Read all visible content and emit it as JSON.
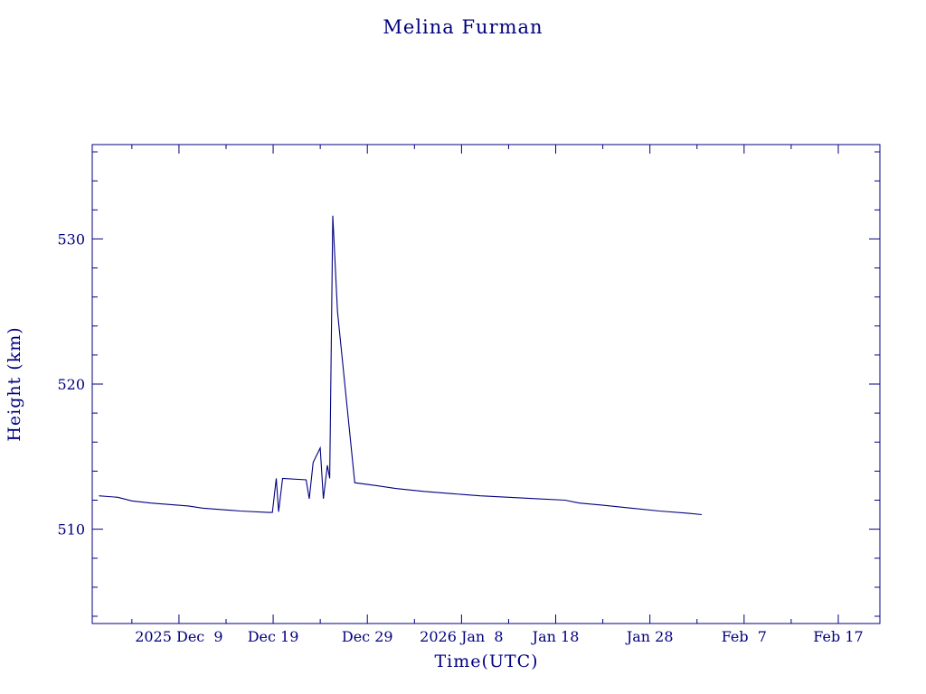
{
  "chart_data": {
    "type": "line",
    "title": "Melina Furman",
    "xlabel": "Time(UTC)",
    "ylabel": "Height (km)",
    "x_tick_labels": [
      "2025 Dec  9",
      "Dec 19",
      "Dec 29",
      "2026 Jan  8",
      "Jan 18",
      "Jan 28",
      "Feb  7",
      "Feb 17"
    ],
    "x_tick_dates": [
      "2025-12-09",
      "2025-12-19",
      "2025-12-29",
      "2026-01-08",
      "2026-01-18",
      "2026-01-28",
      "2026-02-07",
      "2026-02-17"
    ],
    "y_tick_labels": [
      "510",
      "520",
      "530"
    ],
    "y_tick_values": [
      510,
      520,
      530
    ],
    "xlim": [
      "2025-11-29T19:00",
      "2026-02-21T10:00"
    ],
    "ylim": [
      503.5,
      536.5
    ],
    "grid": false,
    "color": "#000080",
    "series": [
      {
        "x": [
          "2025-11-30T12:00",
          "2025-12-01T12:00",
          "2025-12-02T12:00",
          "2025-12-04T00:00",
          "2025-12-06T00:00",
          "2025-12-08T00:00",
          "2025-12-10T00:00",
          "2025-12-11T12:00",
          "2025-12-13T12:00",
          "2025-12-15T12:00",
          "2025-12-18T12:00",
          "2025-12-18T22:00",
          "2025-12-19T08:00",
          "2025-12-19T14:00",
          "2025-12-20T00:00",
          "2025-12-22T12:00",
          "2025-12-22T20:00",
          "2025-12-23T06:00",
          "2025-12-24T00:00",
          "2025-12-24T08:00",
          "2025-12-24T18:00",
          "2025-12-25T00:00",
          "2025-12-25T08:00",
          "2025-12-25T20:00",
          "2025-12-27T16:00",
          "2025-12-30T00:00",
          "2026-01-01T00:00",
          "2026-01-04T00:00",
          "2026-01-07T00:00",
          "2026-01-10T00:00",
          "2026-01-13T00:00",
          "2026-01-16T00:00",
          "2026-01-19T00:00",
          "2026-01-20T12:00",
          "2026-01-23T00:00",
          "2026-01-26T00:00",
          "2026-01-29T00:00",
          "2026-02-01T00:00",
          "2026-02-02T12:00"
        ],
        "y": [
          512.3,
          512.25,
          512.2,
          511.95,
          511.8,
          511.7,
          511.6,
          511.45,
          511.35,
          511.25,
          511.15,
          511.15,
          513.5,
          511.2,
          513.5,
          513.4,
          512.1,
          514.6,
          515.6,
          512.1,
          514.4,
          513.5,
          531.6,
          525.0,
          513.2,
          513.0,
          512.8,
          512.6,
          512.45,
          512.3,
          512.2,
          512.1,
          512.0,
          511.8,
          511.65,
          511.45,
          511.25,
          511.1,
          511.0
        ]
      }
    ]
  }
}
